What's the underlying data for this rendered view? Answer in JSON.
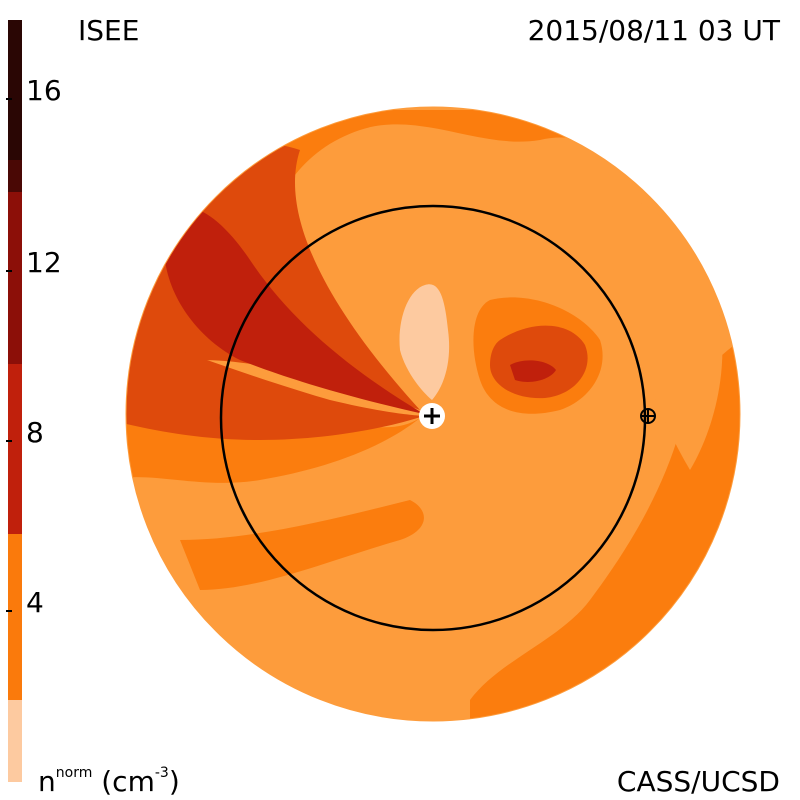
{
  "header": {
    "left_label": "ISEE",
    "right_label": "2015/08/11 03 UT"
  },
  "footer": {
    "units_label": "n",
    "units_sup": "norm",
    "units_suffix": "(cm",
    "units_exp": "-3",
    "units_close": ")",
    "credit": "CASS/UCSD"
  },
  "colorbar": {
    "ticks": [
      "16",
      "12",
      "8",
      "4"
    ],
    "colors": [
      "#2a0604",
      "#5a0a06",
      "#8c0f08",
      "#c0200c",
      "#de4a0c",
      "#fa7a0c",
      "#fd9c3c",
      "#fdcaa0"
    ]
  },
  "map_colors": {
    "light": "#fdcaa0",
    "base": "#fd9c3c",
    "orange": "#fb7d0e",
    "dark_orange": "#de4a0c",
    "red": "#c0200c",
    "dark_red": "#8c0f08"
  }
}
